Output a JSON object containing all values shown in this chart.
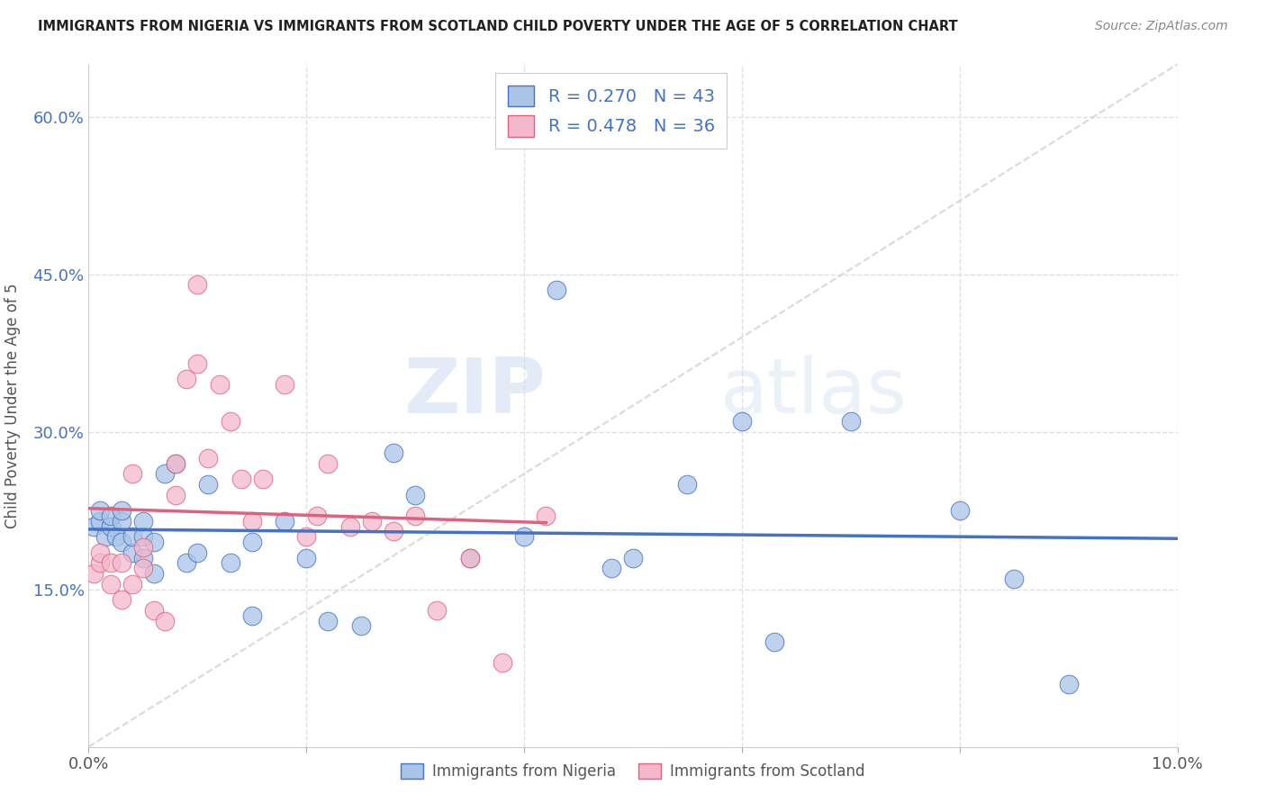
{
  "title": "IMMIGRANTS FROM NIGERIA VS IMMIGRANTS FROM SCOTLAND CHILD POVERTY UNDER THE AGE OF 5 CORRELATION CHART",
  "source": "Source: ZipAtlas.com",
  "ylabel": "Child Poverty Under the Age of 5",
  "x_min": 0.0,
  "x_max": 0.1,
  "y_min": 0.0,
  "y_max": 0.65,
  "x_ticks": [
    0.0,
    0.02,
    0.04,
    0.06,
    0.08,
    0.1
  ],
  "y_ticks": [
    0.15,
    0.3,
    0.45,
    0.6
  ],
  "legend1_label": "Immigrants from Nigeria",
  "legend2_label": "Immigrants from Scotland",
  "r1": 0.27,
  "n1": 43,
  "r2": 0.478,
  "n2": 36,
  "color_nigeria": "#aac4e8",
  "color_scotland": "#f4b8cc",
  "color_nigeria_line": "#4472c4",
  "color_scotland_line": "#e06080",
  "color_diagonal": "#d0d0d0",
  "nigeria_x": [
    0.0005,
    0.001,
    0.001,
    0.0015,
    0.002,
    0.002,
    0.0025,
    0.003,
    0.003,
    0.003,
    0.004,
    0.004,
    0.005,
    0.005,
    0.005,
    0.006,
    0.006,
    0.007,
    0.008,
    0.009,
    0.01,
    0.011,
    0.013,
    0.015,
    0.015,
    0.018,
    0.02,
    0.022,
    0.025,
    0.028,
    0.03,
    0.035,
    0.04,
    0.043,
    0.048,
    0.05,
    0.055,
    0.06,
    0.063,
    0.07,
    0.08,
    0.085,
    0.09
  ],
  "nigeria_y": [
    0.21,
    0.215,
    0.225,
    0.2,
    0.21,
    0.22,
    0.2,
    0.195,
    0.215,
    0.225,
    0.185,
    0.2,
    0.18,
    0.2,
    0.215,
    0.165,
    0.195,
    0.26,
    0.27,
    0.175,
    0.185,
    0.25,
    0.175,
    0.125,
    0.195,
    0.215,
    0.18,
    0.12,
    0.115,
    0.28,
    0.24,
    0.18,
    0.2,
    0.435,
    0.17,
    0.18,
    0.25,
    0.31,
    0.1,
    0.31,
    0.225,
    0.16,
    0.06
  ],
  "scotland_x": [
    0.0005,
    0.001,
    0.001,
    0.002,
    0.002,
    0.003,
    0.003,
    0.004,
    0.004,
    0.005,
    0.005,
    0.006,
    0.007,
    0.008,
    0.008,
    0.009,
    0.01,
    0.01,
    0.011,
    0.012,
    0.013,
    0.014,
    0.015,
    0.016,
    0.018,
    0.02,
    0.021,
    0.022,
    0.024,
    0.026,
    0.028,
    0.03,
    0.032,
    0.035,
    0.038,
    0.042
  ],
  "scotland_y": [
    0.165,
    0.175,
    0.185,
    0.155,
    0.175,
    0.14,
    0.175,
    0.155,
    0.26,
    0.17,
    0.19,
    0.13,
    0.12,
    0.24,
    0.27,
    0.35,
    0.365,
    0.44,
    0.275,
    0.345,
    0.31,
    0.255,
    0.215,
    0.255,
    0.345,
    0.2,
    0.22,
    0.27,
    0.21,
    0.215,
    0.205,
    0.22,
    0.13,
    0.18,
    0.08,
    0.22
  ],
  "watermark_zip": "ZIP",
  "watermark_atlas": "atlas",
  "background_color": "#ffffff",
  "grid_color": "#e0e0e0",
  "grid_linestyle": "--"
}
